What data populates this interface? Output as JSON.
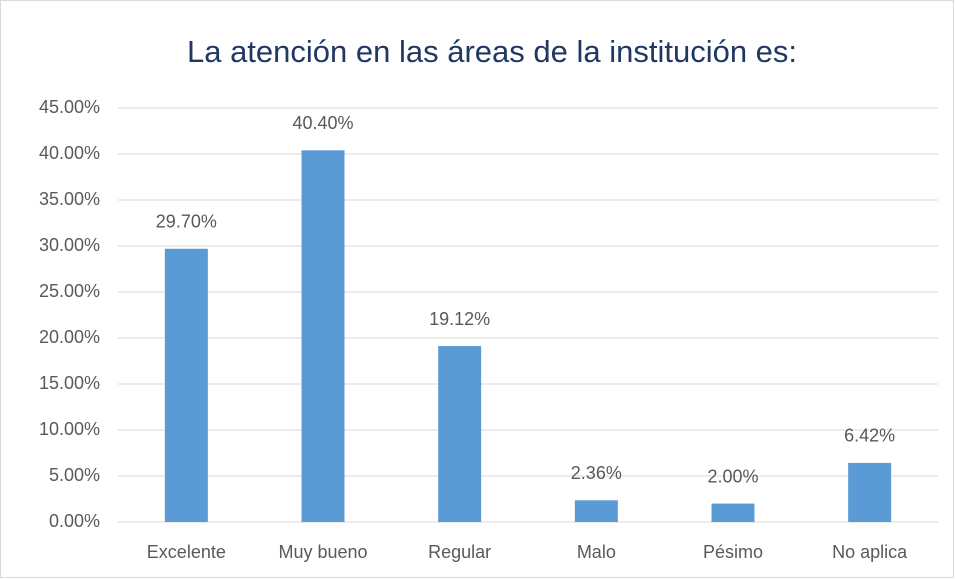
{
  "chart_data": {
    "type": "bar",
    "title": "La atención en las áreas de la institución es:",
    "categories": [
      "Excelente",
      "Muy bueno",
      "Regular",
      "Malo",
      "Pésimo",
      "No aplica"
    ],
    "values": [
      29.7,
      40.4,
      19.12,
      2.36,
      2.0,
      6.42
    ],
    "value_labels": [
      "29.70%",
      "40.40%",
      "19.12%",
      "2.36%",
      "2.00%",
      "6.42%"
    ],
    "color": "#5b9bd5",
    "ylim": [
      0,
      45
    ],
    "yticks": [
      {
        "value": 0,
        "label": "0.00%"
      },
      {
        "value": 5,
        "label": "5.00%"
      },
      {
        "value": 10,
        "label": "10.00%"
      },
      {
        "value": 15,
        "label": "15.00%"
      },
      {
        "value": 20,
        "label": "20.00%"
      },
      {
        "value": 25,
        "label": "25.00%"
      },
      {
        "value": 30,
        "label": "30.00%"
      },
      {
        "value": 35,
        "label": "35.00%"
      },
      {
        "value": 40,
        "label": "40.00%"
      },
      {
        "value": 45,
        "label": "45.00%"
      }
    ],
    "grid": true
  }
}
